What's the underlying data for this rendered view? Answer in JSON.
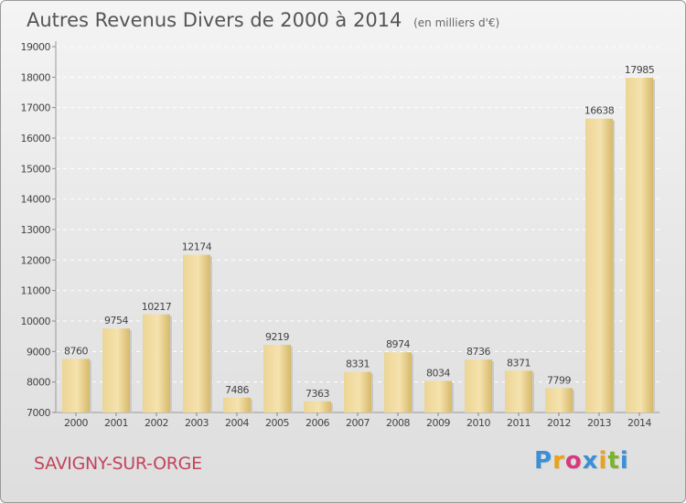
{
  "chart_data": {
    "type": "bar",
    "title": "Autres Revenus Divers de 2000 à 2014",
    "subtitle": "(en milliers d'€)",
    "categories": [
      "2000",
      "2001",
      "2002",
      "2003",
      "2004",
      "2005",
      "2006",
      "2007",
      "2008",
      "2009",
      "2010",
      "2011",
      "2012",
      "2013",
      "2014"
    ],
    "values": [
      8760,
      9754,
      10217,
      12174,
      7486,
      9219,
      7363,
      8331,
      8974,
      8034,
      8736,
      8371,
      7799,
      16638,
      17985
    ],
    "ylim": [
      7000,
      19000
    ],
    "yticks": [
      7000,
      8000,
      9000,
      10000,
      11000,
      12000,
      13000,
      14000,
      15000,
      16000,
      17000,
      18000,
      19000
    ],
    "xlabel": "",
    "ylabel": "",
    "grid": true,
    "bar_color": "#e8cf8a"
  },
  "commune": "SAVIGNY-SUR-ORGE",
  "logo": {
    "letters": [
      "P",
      "r",
      "o",
      "x",
      "i",
      "t",
      "i"
    ],
    "colors": [
      "#3a8fd6",
      "#e8a21c",
      "#d63a7c",
      "#3a8fd6",
      "#e8a21c",
      "#7ab42a",
      "#3a8fd6"
    ]
  }
}
